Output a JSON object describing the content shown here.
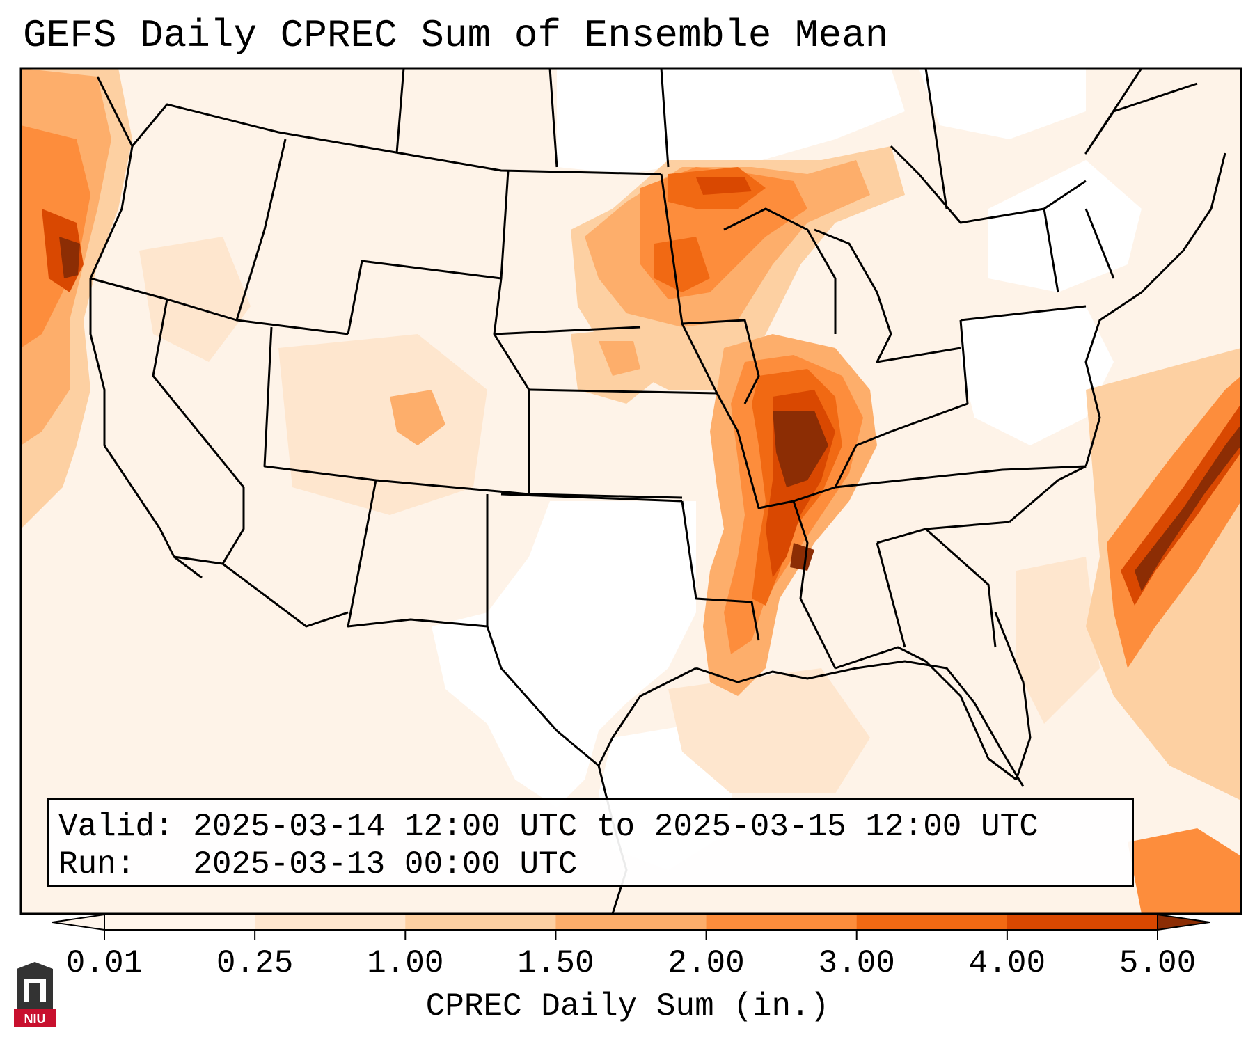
{
  "title": "GEFS Daily CPREC Sum of Ensemble Mean",
  "info": {
    "valid_line": "Valid: 2025-03-14 12:00 UTC to 2025-03-15 12:00 UTC",
    "run_line": "Run:   2025-03-13 00:00 UTC"
  },
  "colorbar": {
    "label": "CPREC Daily Sum (in.)",
    "ticks": [
      "0.01",
      "0.25",
      "1.00",
      "1.50",
      "2.00",
      "3.00",
      "4.00",
      "5.00"
    ],
    "extend": "both",
    "colors": [
      "#fff5eb",
      "#fee6ce",
      "#fdd0a2",
      "#fdae6b",
      "#fd8d3c",
      "#f16913",
      "#d94801",
      "#8c2d04"
    ]
  },
  "map": {
    "region": "Continental United States",
    "variable": "CPREC"
  },
  "logo": {
    "text": "NIU",
    "color": "#c8102e"
  }
}
